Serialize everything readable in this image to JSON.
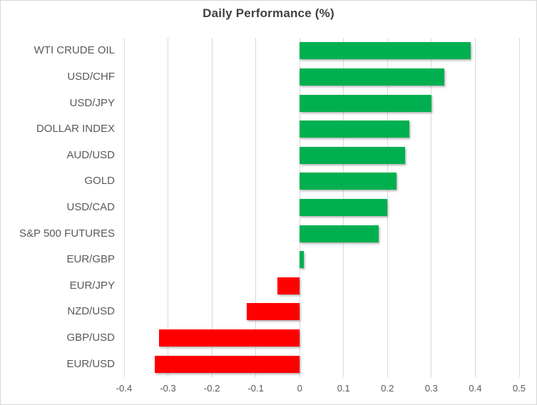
{
  "title": "Daily Performance (%)",
  "colors": {
    "positive_bar": "#00B050",
    "negative_bar": "#FF0000",
    "gridline": "#D9D9D9",
    "title_text": "#404040",
    "axis_text": "#595959",
    "frame_border": "#D7D7D7",
    "background": "#FFFFFF"
  },
  "chart_data": {
    "type": "bar",
    "orientation": "horizontal",
    "title": "Daily Performance (%)",
    "categories": [
      "WTI CRUDE OIL",
      "USD/CHF",
      "USD/JPY",
      "DOLLAR INDEX",
      "AUD/USD",
      "GOLD",
      "USD/CAD",
      "S&P 500 FUTURES",
      "EUR/GBP",
      "EUR/JPY",
      "NZD/USD",
      "GBP/USD",
      "EUR/USD"
    ],
    "values": [
      0.39,
      0.33,
      0.3,
      0.25,
      0.24,
      0.22,
      0.2,
      0.18,
      0.01,
      -0.05,
      -0.12,
      -0.32,
      -0.33
    ],
    "xlabel": "",
    "ylabel": "",
    "xlim": [
      -0.4,
      0.5
    ],
    "x_ticks": [
      -0.4,
      -0.3,
      -0.2,
      -0.1,
      0,
      0.1,
      0.2,
      0.3,
      0.4,
      0.5
    ],
    "x_tick_labels": [
      "-0.4",
      "-0.3",
      "-0.2",
      "-0.1",
      "0",
      "0.1",
      "0.2",
      "0.3",
      "0.4",
      "0.5"
    ],
    "grid": true,
    "legend": false
  }
}
